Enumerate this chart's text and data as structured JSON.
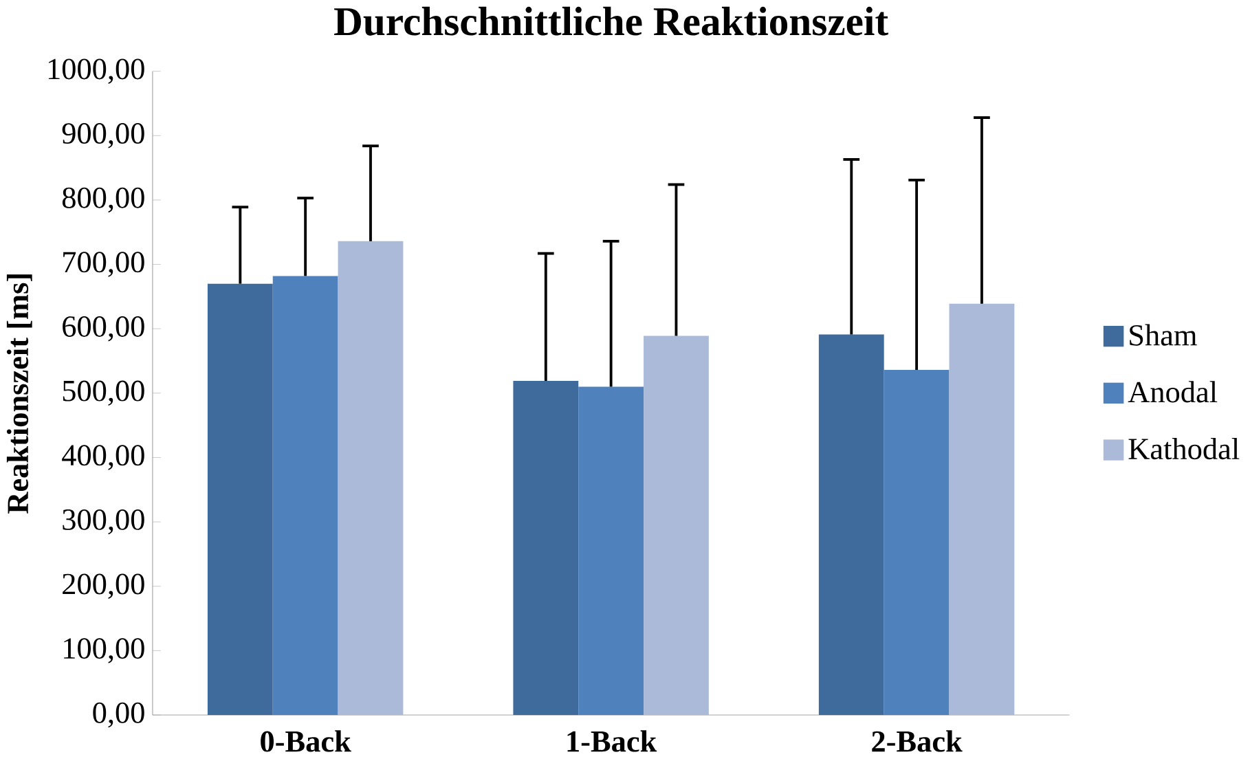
{
  "chart_data": {
    "type": "bar",
    "title": "Durchschnittliche Reaktionszeit",
    "ylabel": "Reaktionszeit [ms]",
    "categories": [
      "0-Back",
      "1-Back",
      "2-Back"
    ],
    "series": [
      {
        "name": "Sham",
        "color": "#3f6a9c",
        "values": [
          670,
          519,
          591
        ],
        "errors": [
          [
            670,
            789
          ],
          [
            519,
            717
          ],
          [
            591,
            863
          ]
        ]
      },
      {
        "name": "Anodal",
        "color": "#4f81bd",
        "values": [
          682,
          510,
          536
        ],
        "errors": [
          [
            682,
            803
          ],
          [
            510,
            736
          ],
          [
            536,
            831
          ]
        ]
      },
      {
        "name": "Kathodal",
        "color": "#aabad8",
        "values": [
          736,
          589,
          639
        ],
        "errors": [
          [
            736,
            884
          ],
          [
            589,
            824
          ],
          [
            639,
            928
          ]
        ]
      }
    ],
    "ylim": [
      0,
      1000
    ],
    "yticks": [
      {
        "value": 0,
        "label": "0,00"
      },
      {
        "value": 100,
        "label": "100,00"
      },
      {
        "value": 200,
        "label": "200,00"
      },
      {
        "value": 300,
        "label": "300,00"
      },
      {
        "value": 400,
        "label": "400,00"
      },
      {
        "value": 500,
        "label": "500,00"
      },
      {
        "value": 600,
        "label": "600,00"
      },
      {
        "value": 700,
        "label": "700,00"
      },
      {
        "value": 800,
        "label": "800,00"
      },
      {
        "value": 900,
        "label": "900,00"
      },
      {
        "value": 1000,
        "label": "1000,00"
      }
    ],
    "grid": false,
    "legend": "right"
  }
}
